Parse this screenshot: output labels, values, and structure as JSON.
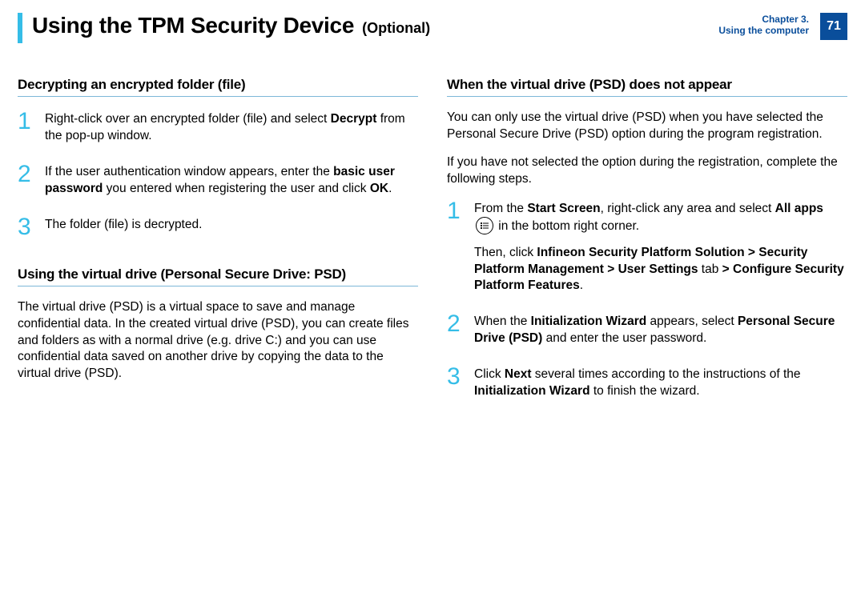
{
  "accent_color": "#35bde7",
  "chapter_color": "#0a4e9b",
  "underline_color": "#7db7d8",
  "header": {
    "title": "Using the TPM Security Device",
    "optional": "(Optional)",
    "chapter_line1": "Chapter 3.",
    "chapter_line2": "Using the computer",
    "page_number": "71"
  },
  "left": {
    "section1": {
      "heading": "Decrypting an encrypted folder (file)",
      "steps": [
        {
          "num": "1",
          "html": "Right-click over an encrypted folder (file) and select <b>Decrypt</b> from the pop-up window."
        },
        {
          "num": "2",
          "html": "If the user authentication window appears, enter the <b>basic user password</b> you entered when registering the user and click <b>OK</b>."
        },
        {
          "num": "3",
          "html": "The folder (file) is decrypted."
        }
      ]
    },
    "section2": {
      "heading": "Using the virtual drive (Personal Secure Drive: PSD)",
      "para": "The virtual drive (PSD) is a virtual space to save and manage confidential data. In the created virtual drive (PSD), you can create files and folders as with a normal drive (e.g. drive C:) and you can use confidential data saved on another drive by copying the data to the virtual drive (PSD)."
    }
  },
  "right": {
    "section1": {
      "heading": "When the virtual drive (PSD) does not appear",
      "para1": "You can only use the virtual drive (PSD) when you have selected the Personal Secure Drive (PSD) option during the program registration.",
      "para2": " If you have not selected the option during the registration, complete the following steps.",
      "steps": [
        {
          "num": "1",
          "html": "From the <b>Start Screen</b>, right-click any area and select <b>All apps</b> {{ICON}} in the bottom right corner.",
          "html2": "Then, click <b>Infineon Security Platform Solution > Security Platform Management > User Settings</b> tab <b>> Configure Security Platform Features</b>."
        },
        {
          "num": "2",
          "html": "When the <b>Initialization Wizard</b> appears, select <b>Personal Secure Drive (PSD)</b> and enter the user password."
        },
        {
          "num": "3",
          "html": "Click <b>Next</b> several times according to the instructions of the <b>Initialization Wizard</b> to finish the wizard."
        }
      ]
    }
  }
}
